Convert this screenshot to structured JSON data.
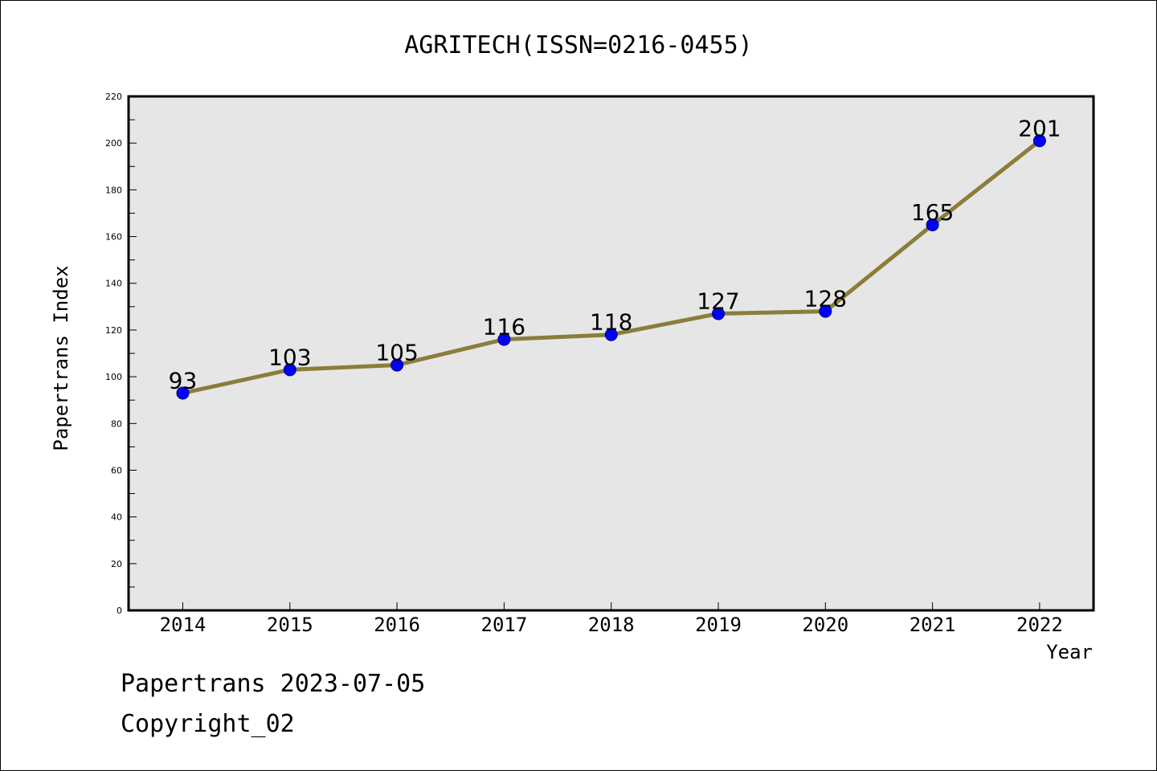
{
  "chart_data": {
    "type": "line",
    "title": "AGRITECH(ISSN=0216-0455)",
    "xlabel": "Year",
    "ylabel": "Papertrans Index",
    "categories": [
      "2014",
      "2015",
      "2016",
      "2017",
      "2018",
      "2019",
      "2020",
      "2021",
      "2022"
    ],
    "series": [
      {
        "values": [
          93,
          103,
          105,
          116,
          118,
          127,
          128,
          165,
          201
        ]
      }
    ],
    "ylim": [
      0,
      220
    ],
    "yticks": [
      0,
      20,
      40,
      60,
      80,
      100,
      120,
      140,
      160,
      180,
      200,
      220
    ],
    "grid": false,
    "data_labels": true,
    "colors": {
      "line": "#8b7d3a",
      "marker": "#0000ff",
      "plot_bg": "#e6e6e6"
    }
  },
  "footer": {
    "line1": "Papertrans 2023-07-05",
    "line2": "Copyright_02"
  }
}
